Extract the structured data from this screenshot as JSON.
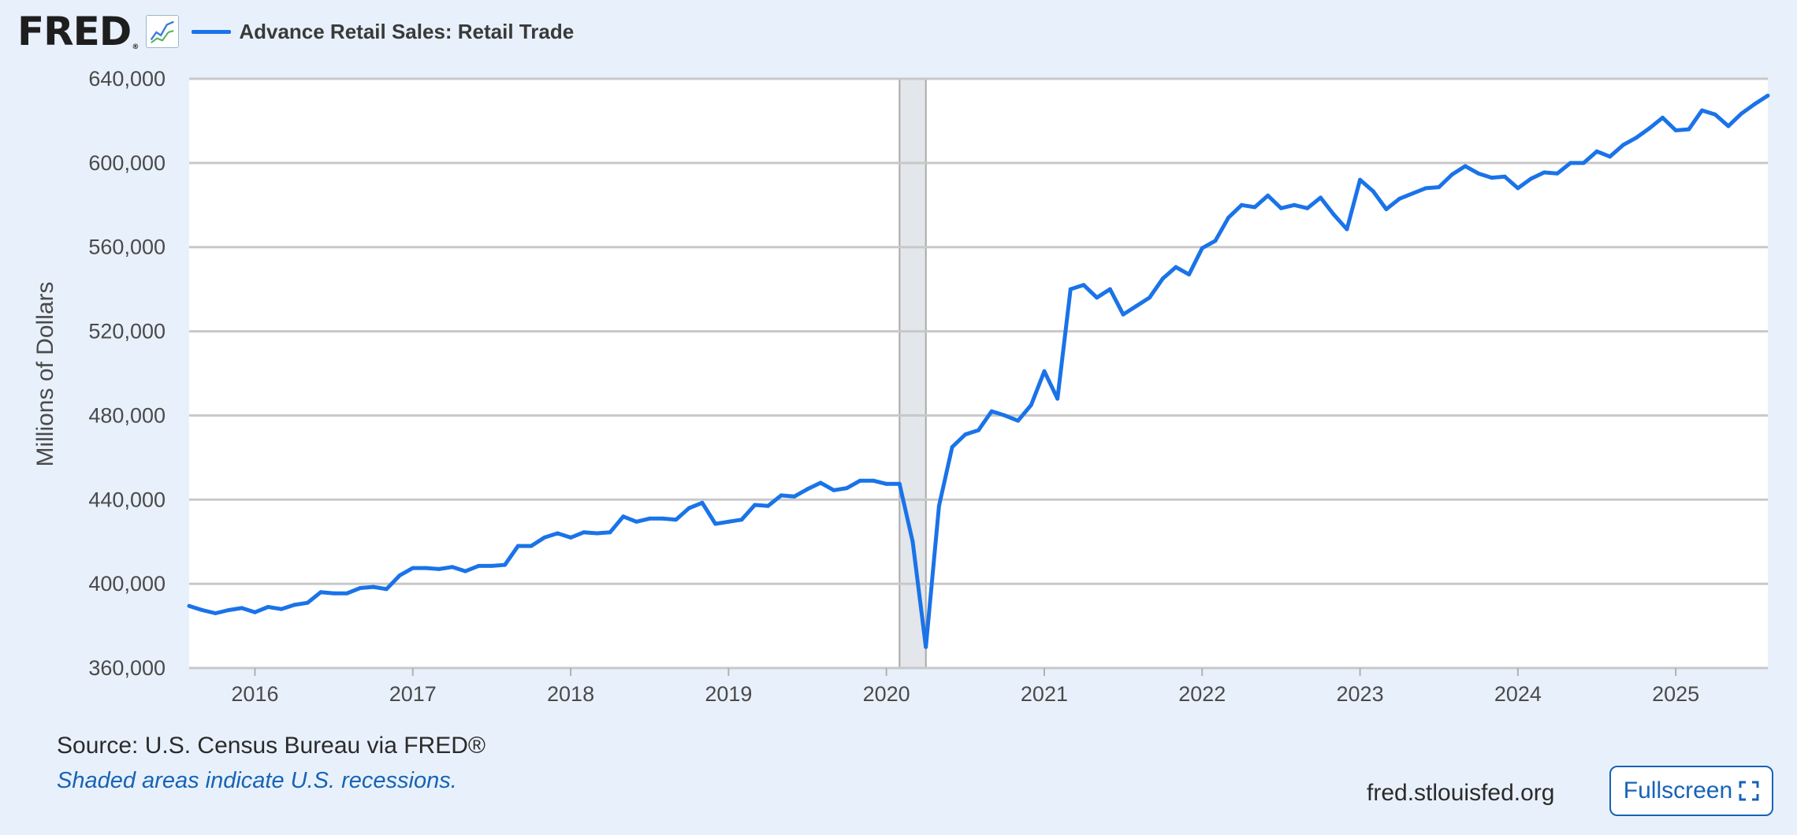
{
  "header": {
    "logo_text": "FRED",
    "logo_mark": "®",
    "series_title": "Advance Retail Sales: Retail Trade",
    "logo_icon": "line-chart-icon"
  },
  "footer": {
    "source": "Source: U.S. Census Bureau via FRED®",
    "recession_note": "Shaded areas indicate U.S. recessions.",
    "site": "fred.stlouisfed.org",
    "fullscreen_label": "Fullscreen",
    "fullscreen_icon": "expand-icon"
  },
  "colors": {
    "series": "#1a73e8",
    "recession": "#e3e6ea",
    "background": "#e8f1fb",
    "grid": "#c8c8c8",
    "link": "#1763b5"
  },
  "chart_data": {
    "type": "line",
    "title": "Advance Retail Sales: Retail Trade",
    "ylabel": "Millions of Dollars",
    "xlabel": "",
    "ylim": [
      360000,
      640000
    ],
    "xlim": [
      "2015-08",
      "2025-08"
    ],
    "yticks": [
      360000,
      400000,
      440000,
      480000,
      520000,
      560000,
      600000,
      640000
    ],
    "ytick_labels": [
      "360,000",
      "400,000",
      "440,000",
      "480,000",
      "520,000",
      "560,000",
      "600,000",
      "640,000"
    ],
    "xticks": [
      "2016-01",
      "2017-01",
      "2018-01",
      "2019-01",
      "2020-01",
      "2021-01",
      "2022-01",
      "2023-01",
      "2024-01",
      "2025-01"
    ],
    "xtick_labels": [
      "2016",
      "2017",
      "2018",
      "2019",
      "2020",
      "2021",
      "2022",
      "2023",
      "2024",
      "2025"
    ],
    "grid": true,
    "recessions": [
      {
        "start": "2020-02",
        "end": "2020-04"
      }
    ],
    "series": [
      {
        "name": "Advance Retail Sales: Retail Trade",
        "start": "2015-08",
        "frequency": "monthly",
        "values": [
          389500,
          387500,
          386000,
          387500,
          388500,
          386500,
          389000,
          388000,
          390000,
          391000,
          396000,
          395500,
          395500,
          398000,
          398500,
          397500,
          404000,
          407500,
          407500,
          407000,
          408000,
          406000,
          408500,
          408500,
          409000,
          418000,
          418000,
          422000,
          424000,
          422000,
          424500,
          424000,
          424500,
          432000,
          429500,
          431000,
          431000,
          430500,
          436000,
          438500,
          428500,
          429500,
          430500,
          437500,
          437000,
          442000,
          441500,
          445000,
          448000,
          444500,
          445500,
          449000,
          449000,
          447500,
          447500,
          420000,
          370000,
          437000,
          465000,
          471000,
          473000,
          482000,
          480000,
          477500,
          485000,
          501000,
          488000,
          540000,
          542000,
          536000,
          540000,
          528000,
          532000,
          536000,
          545000,
          550500,
          547000,
          559500,
          563000,
          574000,
          580000,
          579000,
          584500,
          578500,
          580000,
          578500,
          583500,
          575500,
          568500,
          592000,
          586500,
          578000,
          583000,
          585500,
          588000,
          588500,
          594500,
          598500,
          595000,
          593000,
          593500,
          588000,
          592500,
          595500,
          595000,
          600000,
          600000,
          605500,
          603000,
          608500,
          612000,
          616500,
          621500,
          615500,
          616000,
          625000,
          623000,
          617500,
          623500,
          628000,
          632000
        ]
      }
    ]
  }
}
